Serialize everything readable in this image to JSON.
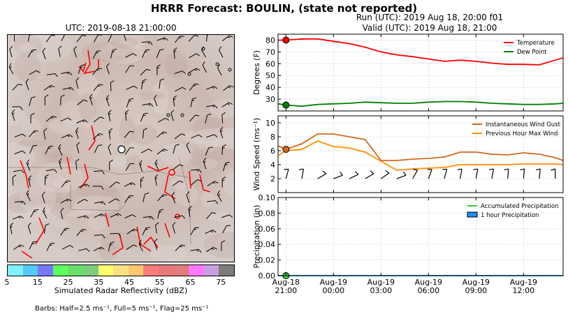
{
  "suptitle": "HRRR Forecast: BOULIN, (state not reported)",
  "run_label": "Run (UTC): 2019 Aug 18, 20:00 f01",
  "valid_label": "Valid (UTC): 2019 Aug 18, 21:00",
  "map_title": "UTC: 2019-08-18 21:00:00",
  "colorbar": {
    "label": "Simulated Radar Reflectivity (dBZ)",
    "ticks": [
      "5",
      "15",
      "25",
      "35",
      "45",
      "55",
      "65",
      "75"
    ],
    "colors": [
      "#7ff0ff",
      "#55c8ff",
      "#7878ff",
      "#5cff5c",
      "#68e068",
      "#7ccc7c",
      "#ffff70",
      "#f7e080",
      "#ffc870",
      "#ff7c7c",
      "#e87878",
      "#e07c7c",
      "#ff78ff",
      "#c8a0e0",
      "#7c7c7c"
    ]
  },
  "barb_note": "Barbs: Half=2.5 ms⁻¹, Full=5 ms⁻¹, Flag=25 ms⁻¹",
  "x_tick_labels": [
    {
      "top": "Aug-18",
      "bottom": "21:00"
    },
    {
      "top": "Aug-19",
      "bottom": "00:00"
    },
    {
      "top": "Aug-19",
      "bottom": "03:00"
    },
    {
      "top": "Aug-19",
      "bottom": "06:00"
    },
    {
      "top": "Aug-19",
      "bottom": "09:00"
    },
    {
      "top": "Aug-19",
      "bottom": "12:00"
    }
  ],
  "chart_data": [
    {
      "type": "line",
      "ylabel": "Degrees (F)",
      "ylim": [
        20,
        85
      ],
      "yticks": [
        "30",
        "40",
        "50",
        "60",
        "70",
        "80"
      ],
      "xlim": [
        -0.5,
        17.5
      ],
      "grid": true,
      "legend": "top-right",
      "x_hours": [
        -0.5,
        0,
        1,
        2,
        3,
        4,
        5,
        6,
        7,
        8,
        9,
        10,
        11,
        12,
        13,
        14,
        15,
        16,
        17,
        17.5
      ],
      "series": [
        {
          "name": "Temperature",
          "color": "#ff0000",
          "values": [
            80,
            80,
            81,
            81,
            79,
            77,
            74,
            70,
            67.5,
            66,
            64,
            62,
            63,
            62,
            60.5,
            59.5,
            59.5,
            59,
            63,
            65
          ]
        },
        {
          "name": "Dew Point",
          "color": "#008000",
          "values": [
            26,
            25,
            24,
            25.5,
            26,
            26.5,
            27.5,
            27,
            26.5,
            26.5,
            27.5,
            28,
            28,
            27.5,
            26.5,
            26,
            25.5,
            25.5,
            26,
            26.5
          ]
        }
      ],
      "markers": [
        {
          "series": "Temperature",
          "x": 0,
          "y": 80
        },
        {
          "series": "Dew Point",
          "x": 0,
          "y": 25
        }
      ]
    },
    {
      "type": "line",
      "ylabel": "Wind Speed (ms⁻¹)",
      "ylim": [
        0,
        11
      ],
      "yticks": [
        "2",
        "4",
        "6",
        "8",
        "10"
      ],
      "xlim": [
        -0.5,
        17.5
      ],
      "grid": true,
      "legend": "top-right",
      "x_hours": [
        -0.5,
        0,
        1,
        2,
        3,
        4,
        5,
        6,
        7,
        8,
        9,
        10,
        11,
        12,
        13,
        14,
        15,
        16,
        17,
        17.5
      ],
      "series": [
        {
          "name": "Instantaneous Wind Gust",
          "color": "#d2691e",
          "values": [
            6.7,
            6.2,
            7,
            8.4,
            8.4,
            8,
            7.6,
            4.6,
            4.6,
            4.8,
            4.9,
            5.1,
            5.8,
            5.8,
            5.5,
            5.4,
            5.7,
            5.5,
            5,
            4.6
          ]
        },
        {
          "name": "Previous Hour Max Wind",
          "color": "#ff8c00",
          "values": [
            5.3,
            6,
            6.2,
            7.4,
            6.6,
            6.4,
            5.8,
            4.5,
            3.2,
            3.4,
            3.5,
            3.6,
            4,
            4,
            4,
            4,
            4.1,
            4.1,
            4.1,
            4
          ]
        }
      ],
      "markers": [
        {
          "series": "Instantaneous Wind Gust",
          "x": 0,
          "y": 6.2
        }
      ]
    },
    {
      "type": "line",
      "ylabel": "Precipitation (in)",
      "ylim": [
        0,
        0.1
      ],
      "yticks": [
        "0.00",
        "0.02",
        "0.04",
        "0.06",
        "0.08",
        "0.10"
      ],
      "xlim": [
        -0.5,
        17.5
      ],
      "grid": true,
      "legend": "top-right",
      "x_hours": [
        -0.5,
        17.5
      ],
      "series": [
        {
          "name": "Accumulated Precipitation",
          "color": "#33cc33",
          "values": [
            0,
            0
          ]
        },
        {
          "name": "1 hour Precipitation",
          "color": "#1e90ff",
          "values": [
            0,
            0
          ]
        }
      ],
      "markers": [
        {
          "series": "Accumulated Precipitation",
          "x": 0,
          "y": 0
        }
      ]
    }
  ]
}
